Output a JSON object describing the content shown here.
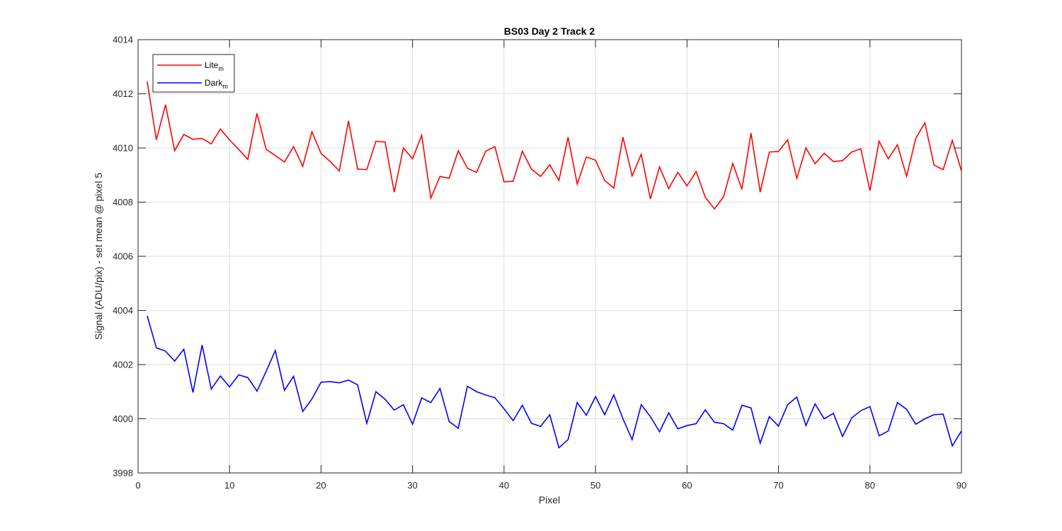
{
  "chart_data": {
    "type": "line",
    "title": "BS03 Day 2 Track 2",
    "xlabel": "Pixel",
    "ylabel": "Signal (ADU/pix) - set mean @ pixel 5",
    "xlim": [
      0,
      90
    ],
    "ylim": [
      3998,
      4014
    ],
    "xticks": [
      0,
      10,
      20,
      30,
      40,
      50,
      60,
      70,
      80,
      90
    ],
    "yticks": [
      3998,
      4000,
      4002,
      4004,
      4006,
      4008,
      4010,
      4012,
      4014
    ],
    "grid": true,
    "legend_position": "top-left",
    "colors": {
      "lite": "#ff0000",
      "dark": "#0000ff",
      "axis": "#262626",
      "grid": "#dcdcdc"
    },
    "x": [
      1,
      2,
      3,
      4,
      5,
      6,
      7,
      8,
      9,
      10,
      11,
      12,
      13,
      14,
      15,
      16,
      17,
      18,
      19,
      20,
      21,
      22,
      23,
      24,
      25,
      26,
      27,
      28,
      29,
      30,
      31,
      32,
      33,
      34,
      35,
      36,
      37,
      38,
      39,
      40,
      41,
      42,
      43,
      44,
      45,
      46,
      47,
      48,
      49,
      50,
      51,
      52,
      53,
      54,
      55,
      56,
      57,
      58,
      59,
      60,
      61,
      62,
      63,
      64,
      65,
      66,
      67,
      68,
      69,
      70,
      71,
      72,
      73,
      74,
      75,
      76,
      77,
      78,
      79,
      80,
      81,
      82,
      83,
      84,
      85,
      86,
      87,
      88,
      89,
      90
    ],
    "series": [
      {
        "name": "Lite",
        "name_sub": "m",
        "color": "#ff0000",
        "values": [
          4012.45,
          4010.3,
          4011.6,
          4009.9,
          4010.5,
          4010.32,
          4010.35,
          4010.15,
          4010.7,
          4010.3,
          4009.95,
          4009.58,
          4011.28,
          4009.95,
          4009.72,
          4009.48,
          4010.05,
          4009.32,
          4010.6,
          4009.8,
          4009.5,
          4009.15,
          4011.0,
          4009.22,
          4009.2,
          4010.25,
          4010.22,
          4008.37,
          4010.0,
          4009.6,
          4010.47,
          4008.15,
          4008.95,
          4008.88,
          4009.9,
          4009.25,
          4009.1,
          4009.88,
          4010.05,
          4008.75,
          4008.77,
          4009.88,
          4009.22,
          4008.95,
          4009.38,
          4008.8,
          4010.4,
          4008.67,
          4009.67,
          4009.55,
          4008.8,
          4008.52,
          4010.4,
          4008.97,
          4009.77,
          4008.12,
          4009.3,
          4008.5,
          4009.1,
          4008.6,
          4009.13,
          4008.18,
          4007.75,
          4008.2,
          4009.43,
          4008.47,
          4010.55,
          4008.37,
          4009.85,
          4009.87,
          4010.3,
          4008.88,
          4010.0,
          4009.42,
          4009.8,
          4009.5,
          4009.53,
          4009.85,
          4009.97,
          4008.42,
          4010.25,
          4009.6,
          4010.12,
          4008.95,
          4010.35,
          4010.93,
          4009.37,
          4009.2,
          4010.28,
          4009.15
        ]
      },
      {
        "name": "Dark",
        "name_sub": "m",
        "color": "#0000ff",
        "values": [
          4003.8,
          4002.62,
          4002.5,
          4002.13,
          4002.57,
          4000.97,
          4002.72,
          4001.1,
          4001.58,
          4001.18,
          4001.62,
          4001.52,
          4001.02,
          4001.75,
          4002.52,
          4001.05,
          4001.57,
          4000.27,
          4000.73,
          4001.35,
          4001.37,
          4001.33,
          4001.43,
          4001.25,
          3999.83,
          4001.0,
          4000.72,
          4000.32,
          4000.52,
          3999.8,
          4000.77,
          4000.6,
          4001.12,
          3999.9,
          3999.65,
          4001.2,
          4001.0,
          4000.88,
          4000.78,
          4000.37,
          3999.93,
          4000.5,
          3999.83,
          3999.72,
          4000.15,
          3998.93,
          3999.23,
          4000.6,
          4000.13,
          4000.82,
          4000.15,
          4000.88,
          4000.0,
          3999.23,
          4000.52,
          4000.08,
          3999.52,
          4000.22,
          3999.63,
          3999.75,
          3999.82,
          4000.33,
          3999.87,
          3999.82,
          3999.58,
          4000.5,
          4000.4,
          3999.1,
          4000.08,
          3999.73,
          4000.52,
          4000.8,
          3999.75,
          4000.55,
          4000.0,
          4000.2,
          3999.35,
          4000.03,
          4000.3,
          4000.45,
          3999.37,
          3999.55,
          4000.6,
          4000.35,
          3999.8,
          4000.0,
          4000.15,
          4000.17,
          3999.0,
          3999.55
        ]
      }
    ]
  }
}
